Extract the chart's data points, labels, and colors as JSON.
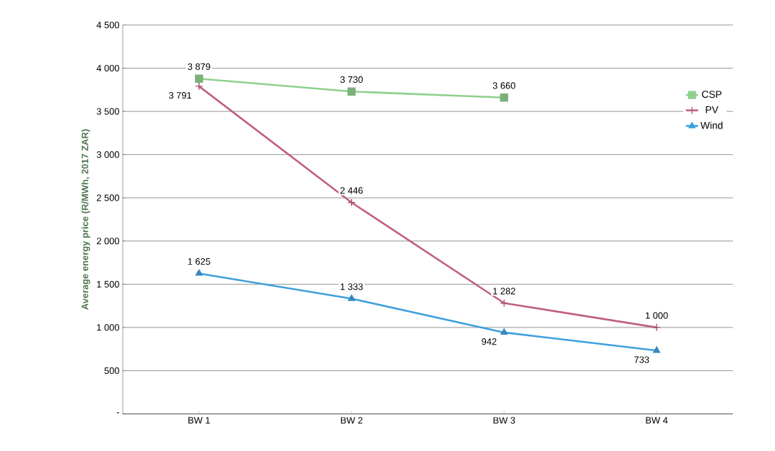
{
  "chart_data": {
    "type": "line",
    "ylabel": "Average energy price (R/MWh, 2017 ZAR)",
    "categories": [
      "BW 1",
      "BW 2",
      "BW 3",
      "BW 4"
    ],
    "series": [
      {
        "name": "CSP",
        "color": "#8fd08f",
        "marker": "square",
        "values": [
          3879,
          3730,
          3660,
          null
        ],
        "value_labels": [
          "3 879",
          "3 730",
          "3 660",
          null
        ]
      },
      {
        "name": "PV",
        "color": "#c0607f",
        "marker": "cross",
        "values": [
          3791,
          2446,
          1282,
          1000
        ],
        "value_labels": [
          "3 791",
          "2 446",
          "1 282",
          "1 000"
        ]
      },
      {
        "name": "Wind",
        "color": "#3fa0dc",
        "marker": "triangle",
        "values": [
          1625,
          1333,
          942,
          733
        ],
        "value_labels": [
          "1 625",
          "1 333",
          "942",
          "733"
        ]
      }
    ],
    "ylim": [
      0,
      4500
    ],
    "yticks": [
      {
        "value": 0,
        "label": "-"
      },
      {
        "value": 500,
        "label": "500"
      },
      {
        "value": 1000,
        "label": "1 000"
      },
      {
        "value": 1500,
        "label": "1 500"
      },
      {
        "value": 2000,
        "label": "2 000"
      },
      {
        "value": 2500,
        "label": "2 500"
      },
      {
        "value": 3000,
        "label": "3 000"
      },
      {
        "value": 3500,
        "label": "3 500"
      },
      {
        "value": 4000,
        "label": "4 000"
      },
      {
        "value": 4500,
        "label": "4 500"
      }
    ],
    "grid": "y",
    "legend": "right",
    "line_style": "solid"
  }
}
